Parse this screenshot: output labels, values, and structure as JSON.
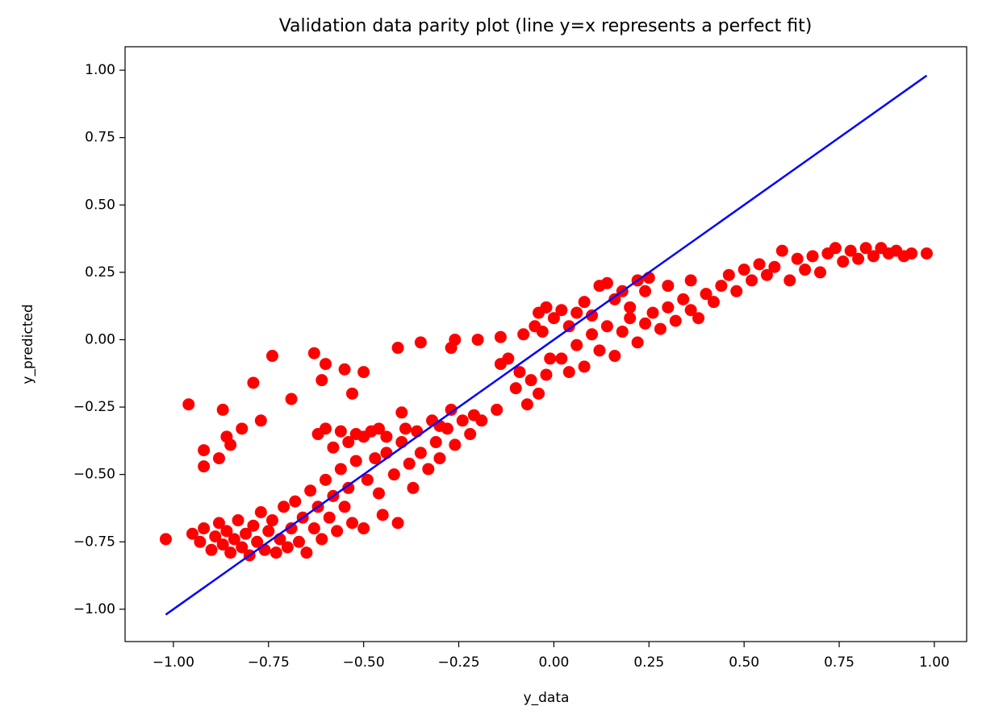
{
  "chart_data": {
    "type": "scatter",
    "title": "Validation data parity plot (line y=x represents a perfect fit)",
    "xlabel": "y_data",
    "ylabel": "y_predicted",
    "color": "#ff0000",
    "x": [
      -1.02,
      -0.96,
      -0.92,
      -0.92,
      -0.88,
      -0.87,
      -0.86,
      -0.85,
      -0.82,
      -0.79,
      -0.77,
      -0.74,
      -0.69,
      -0.63,
      -0.61,
      -0.6,
      -0.55,
      -0.53,
      -0.5,
      -0.41,
      -0.35,
      -0.27,
      -0.26,
      -0.2,
      -0.14,
      -0.08,
      -0.03,
      -0.95,
      -0.93,
      -0.92,
      -0.9,
      -0.89,
      -0.88,
      -0.87,
      -0.86,
      -0.85,
      -0.84,
      -0.83,
      -0.82,
      -0.81,
      -0.8,
      -0.79,
      -0.78,
      -0.77,
      -0.76,
      -0.75,
      -0.74,
      -0.73,
      -0.72,
      -0.71,
      -0.7,
      -0.69,
      -0.68,
      -0.67,
      -0.66,
      -0.65,
      -0.64,
      -0.63,
      -0.62,
      -0.61,
      -0.6,
      -0.59,
      -0.58,
      -0.57,
      -0.56,
      -0.55,
      -0.54,
      -0.53,
      -0.52,
      -0.5,
      -0.49,
      -0.47,
      -0.46,
      -0.45,
      -0.44,
      -0.42,
      -0.41,
      -0.4,
      -0.38,
      -0.37,
      -0.36,
      -0.35,
      -0.33,
      -0.32,
      -0.31,
      -0.3,
      -0.28,
      -0.27,
      -0.26,
      -0.24,
      -0.22,
      -0.21,
      -0.19,
      -0.15,
      -0.14,
      -0.12,
      -0.1,
      -0.09,
      -0.07,
      -0.06,
      -0.04,
      -0.02,
      -0.01,
      -0.62,
      -0.6,
      -0.58,
      -0.56,
      -0.54,
      -0.52,
      -0.5,
      -0.48,
      -0.46,
      -0.44,
      -0.4,
      -0.39,
      -0.3,
      -0.05,
      -0.04,
      -0.02,
      0.0,
      0.02,
      0.04,
      0.06,
      0.08,
      0.1,
      0.12,
      0.14,
      0.16,
      0.18,
      0.2,
      0.22,
      0.24,
      0.02,
      0.04,
      0.06,
      0.08,
      0.1,
      0.12,
      0.14,
      0.16,
      0.18,
      0.2,
      0.22,
      0.24,
      0.26,
      0.28,
      0.3,
      0.32,
      0.34,
      0.36,
      0.38,
      0.4,
      0.42,
      0.44,
      0.46,
      0.48,
      0.5,
      0.52,
      0.54,
      0.56,
      0.58,
      0.6,
      0.62,
      0.64,
      0.66,
      0.68,
      0.7,
      0.72,
      0.74,
      0.76,
      0.78,
      0.8,
      0.82,
      0.84,
      0.86,
      0.88,
      0.9,
      0.92,
      0.94,
      0.98,
      0.25,
      0.3,
      0.36
    ],
    "y": [
      -0.74,
      -0.24,
      -0.47,
      -0.41,
      -0.44,
      -0.26,
      -0.36,
      -0.39,
      -0.33,
      -0.16,
      -0.3,
      -0.06,
      -0.22,
      -0.05,
      -0.15,
      -0.09,
      -0.11,
      -0.2,
      -0.12,
      -0.03,
      -0.01,
      -0.03,
      0.0,
      0.0,
      0.01,
      0.02,
      0.03,
      -0.72,
      -0.75,
      -0.7,
      -0.78,
      -0.73,
      -0.68,
      -0.76,
      -0.71,
      -0.79,
      -0.74,
      -0.67,
      -0.77,
      -0.72,
      -0.8,
      -0.69,
      -0.75,
      -0.64,
      -0.78,
      -0.71,
      -0.67,
      -0.79,
      -0.74,
      -0.62,
      -0.77,
      -0.7,
      -0.6,
      -0.75,
      -0.66,
      -0.79,
      -0.56,
      -0.7,
      -0.62,
      -0.74,
      -0.52,
      -0.66,
      -0.58,
      -0.71,
      -0.48,
      -0.62,
      -0.55,
      -0.68,
      -0.45,
      -0.7,
      -0.52,
      -0.44,
      -0.57,
      -0.65,
      -0.42,
      -0.5,
      -0.68,
      -0.38,
      -0.46,
      -0.55,
      -0.34,
      -0.42,
      -0.48,
      -0.3,
      -0.38,
      -0.44,
      -0.33,
      -0.26,
      -0.39,
      -0.3,
      -0.35,
      -0.28,
      -0.3,
      -0.26,
      -0.09,
      -0.07,
      -0.18,
      -0.12,
      -0.24,
      -0.15,
      -0.2,
      -0.13,
      -0.07,
      -0.35,
      -0.33,
      -0.4,
      -0.34,
      -0.38,
      -0.35,
      -0.36,
      -0.34,
      -0.33,
      -0.36,
      -0.27,
      -0.33,
      -0.32,
      0.05,
      0.1,
      0.12,
      0.08,
      0.11,
      0.05,
      0.1,
      0.14,
      0.09,
      0.2,
      0.21,
      0.15,
      0.18,
      0.12,
      0.22,
      0.18,
      -0.07,
      -0.12,
      -0.02,
      -0.1,
      0.02,
      -0.04,
      0.05,
      -0.06,
      0.03,
      0.08,
      -0.01,
      0.06,
      0.1,
      0.04,
      0.12,
      0.07,
      0.15,
      0.11,
      0.08,
      0.17,
      0.14,
      0.2,
      0.24,
      0.18,
      0.26,
      0.22,
      0.28,
      0.24,
      0.27,
      0.33,
      0.22,
      0.3,
      0.26,
      0.31,
      0.25,
      0.32,
      0.34,
      0.29,
      0.33,
      0.3,
      0.34,
      0.31,
      0.34,
      0.32,
      0.33,
      0.31,
      0.32,
      0.32,
      0.23,
      0.2,
      0.22
    ],
    "line": {
      "x": [
        -1.02,
        0.98
      ],
      "y": [
        -1.02,
        0.98
      ],
      "color": "#0000ff"
    },
    "xlim": [
      -1.127,
      1.085
    ],
    "ylim": [
      -1.12,
      1.087
    ],
    "xticks": [
      {
        "value": -1,
        "label": "−1.00"
      },
      {
        "value": -0.75,
        "label": "−0.75"
      },
      {
        "value": -0.5,
        "label": "−0.50"
      },
      {
        "value": -0.25,
        "label": "−0.25"
      },
      {
        "value": 0,
        "label": "0.00"
      },
      {
        "value": 0.25,
        "label": "0.25"
      },
      {
        "value": 0.5,
        "label": "0.50"
      },
      {
        "value": 0.75,
        "label": "0.75"
      },
      {
        "value": 1,
        "label": "1.00"
      }
    ],
    "yticks": [
      {
        "value": -1,
        "label": "−1.00"
      },
      {
        "value": -0.75,
        "label": "−0.75"
      },
      {
        "value": -0.5,
        "label": "−0.50"
      },
      {
        "value": -0.25,
        "label": "−0.25"
      },
      {
        "value": 0,
        "label": "0.00"
      },
      {
        "value": 0.25,
        "label": "0.25"
      },
      {
        "value": 0.5,
        "label": "0.50"
      },
      {
        "value": 0.75,
        "label": "0.75"
      },
      {
        "value": 1,
        "label": "1.00"
      }
    ]
  }
}
